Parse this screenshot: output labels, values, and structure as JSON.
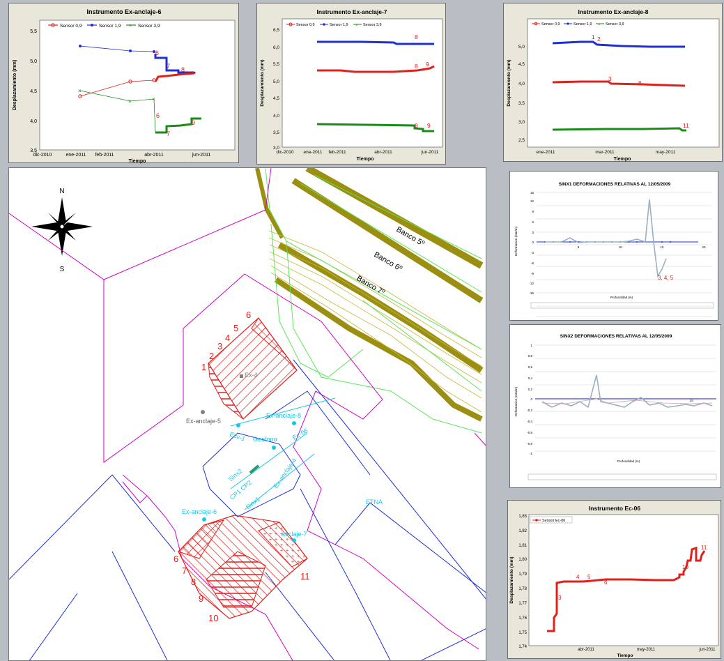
{
  "charts": {
    "ex6": {
      "title": "Instrumento Ex-anclaje-6",
      "ylabel": "Desplazamiento (mm)",
      "xlabel": "Tiempo",
      "legend": [
        "Sensor 0,9",
        "Sensor 1,9",
        "Sensor 3,9"
      ],
      "yticks": [
        "5,5",
        "5,0",
        "4,5",
        "4,0",
        "3,5"
      ],
      "xticks": [
        "dic-2010",
        "ene-2011",
        "feb-2011",
        "abr-2011",
        "jun-2011"
      ],
      "annotations": [
        "6",
        "7",
        "8",
        "6",
        "7",
        "9"
      ]
    },
    "ex7": {
      "title": "Instrumento Ex-anclaje-7",
      "ylabel": "Desplazamiento (mm)",
      "xlabel": "Tiempo",
      "legend": [
        "Sensor 0,9",
        "Sensor 1,9",
        "Sensor 3,9"
      ],
      "yticks": [
        "6,5",
        "6,0",
        "5,5",
        "5,0",
        "4,5",
        "4,0",
        "3,5",
        "3,0"
      ],
      "xticks": [
        "dic-2010",
        "ene-2011",
        "feb-2011",
        "abr-2011",
        "jun-2011"
      ],
      "annotations": [
        "8",
        "8",
        "9",
        "8",
        "9"
      ]
    },
    "ex8": {
      "title": "Instrumento Ex-anclaje-8",
      "ylabel": "Desplazamiento (mm)",
      "xlabel": "Tiempo",
      "legend": [
        "Sensor 0,9",
        "Sensor 1,9",
        "Sensor 3,9"
      ],
      "yticks": [
        "5,0",
        "4,5",
        "4,0",
        "3,5",
        "3,0",
        "2,5"
      ],
      "xticks": [
        "ene-2011",
        "mar-2011",
        "may-2011"
      ],
      "annotations": [
        "1",
        "2",
        "3",
        "6",
        "11"
      ]
    },
    "sinx1": {
      "title": "SINX1 DEFORMACIONES RELATIVAS AL 12/05/2009",
      "ylabel": "Deformacion (mm/m)",
      "xlabel": "Profundidad (m)",
      "yticks": [
        "15",
        "12",
        "9",
        "6",
        "3",
        "0",
        "-3",
        "-6",
        "-9",
        "-12",
        "-15"
      ],
      "xticks": [
        "5",
        "10",
        "15",
        "20"
      ],
      "annotation": "3, 4, 5"
    },
    "sinx2": {
      "title": "SINX2 DEFORMACIONES RELATIVAS AL 12/05/2009",
      "ylabel": "Deformacion (mm/m)",
      "xlabel": "Profundidad (m)",
      "yticks": [
        "1",
        "0,8",
        "0,6",
        "0,4",
        "0,2",
        "0",
        "-0,2",
        "-0,4",
        "-0,6",
        "-0,8",
        "-1"
      ],
      "xticks": [
        "20"
      ]
    },
    "ec06": {
      "title": "Instrumento Ec-06",
      "ylabel": "Desplazamiento (mm)",
      "xlabel": "Tiempo",
      "legend": [
        "Sensor Ec-06"
      ],
      "yticks": [
        "1,83",
        "1,82",
        "1,81",
        "1,80",
        "1,79",
        "1,78",
        "1,77",
        "1,76",
        "1,75",
        "1,74"
      ],
      "xticks": [
        "abr-2011",
        "may-2011",
        "jun-2011"
      ],
      "annotations": [
        "3",
        "4",
        "5",
        "6",
        "10",
        "11"
      ]
    }
  },
  "map": {
    "north": "N",
    "south": "S",
    "benches": [
      "Banco 5º",
      "Banco 6º",
      "Banco 7º"
    ],
    "upper_zone_numbers": [
      "1",
      "2",
      "3",
      "4",
      "5",
      "6"
    ],
    "lower_zone_numbers": [
      "6",
      "7",
      "8",
      "9",
      "10",
      "11"
    ],
    "labels": {
      "ex4": "Ex-4",
      "ex5": "Ex-anclaje-5",
      "ex8": "Ex-anclaje-8",
      "ec06": "Ec-06",
      "geofono": "Geofono",
      "ecv1": "Ecv-1",
      "sinx2": "Sinx2",
      "cp1cp2": "CP1 CP2",
      "sinx1": "Sinx1",
      "ex4b": "Ex-anclaje-4",
      "ex6": "Ex-anclaje-6",
      "ex7": "anclaje-7",
      "etna": "ETNA"
    }
  },
  "colors": {
    "red": "#e0201a",
    "blue": "#1f2fd0",
    "green": "#1a8a1a",
    "cyan": "#19c8e6",
    "magenta": "#d400c8",
    "olive": "#9a8f10"
  }
}
